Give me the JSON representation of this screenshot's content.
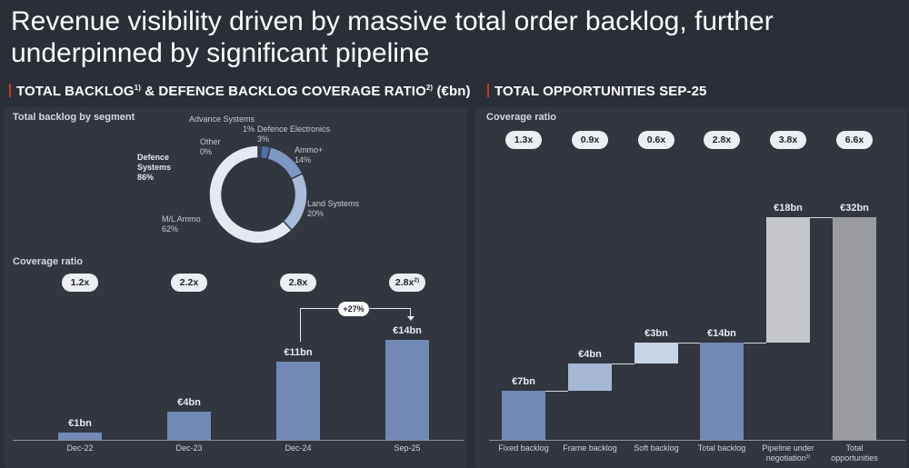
{
  "slide": {
    "title": "Revenue visibility driven by massive total order backlog, further underpinned by significant pipeline"
  },
  "left": {
    "heading_main": "TOTAL BACKLOG",
    "heading_sup1": "1)",
    "heading_mid": " & DEFENCE BACKLOG COVERAGE RATIO",
    "heading_sup2": "2)",
    "heading_end": " (€bn)",
    "donut_label": "Total backlog by segment",
    "coverage_label": "Coverage ratio",
    "growth_badge": "+27%",
    "center_label_line1": "Defence",
    "center_label_line2": "Systems",
    "center_label_pct": "86%"
  },
  "right": {
    "heading": "TOTAL OPPORTUNITIES SEP-25",
    "coverage_label": "Coverage ratio"
  },
  "chart_data": [
    {
      "type": "pie",
      "title": "Total backlog by segment",
      "slices": [
        {
          "name": "Advance Systems",
          "value": 1,
          "label": "1%",
          "color": "#2f5089"
        },
        {
          "name": "Defence Electronics",
          "value": 3,
          "label": "3%",
          "color": "#4e6fa6"
        },
        {
          "name": "Ammo+",
          "value": 14,
          "label": "14%",
          "color": "#7d97c3"
        },
        {
          "name": "Land Systems",
          "value": 20,
          "label": "20%",
          "color": "#a9bcd9"
        },
        {
          "name": "M/L Ammo",
          "value": 62,
          "label": "62%",
          "color": "#e6e9ef"
        },
        {
          "name": "Other",
          "value": 0,
          "label": "0%",
          "color": "#cfd4dc"
        }
      ]
    },
    {
      "type": "bar",
      "title": "Total backlog",
      "categories": [
        "Dec-22",
        "Dec-23",
        "Dec-24",
        "Sep-25"
      ],
      "values": [
        1,
        4,
        11,
        14
      ],
      "value_labels": [
        "€1bn",
        "€4bn",
        "€11bn",
        "€14bn"
      ],
      "coverage_ratios": [
        "1.2x",
        "2.2x",
        "2.8x",
        "2.8x"
      ],
      "coverage_sup": [
        "",
        "",
        "",
        "2)"
      ],
      "ylim": [
        0,
        14
      ],
      "color": "#7189b4"
    },
    {
      "type": "bar",
      "subtype": "waterfall",
      "title": "Total opportunities Sep-25",
      "categories": [
        "Fixed backlog",
        "Frame backlog",
        "Soft backlog",
        "Total backlog",
        "Pipeline under negotiation",
        "Total opportunities"
      ],
      "category_lines": [
        [
          "Fixed backlog"
        ],
        [
          "Frame backlog"
        ],
        [
          "Soft backlog"
        ],
        [
          "Total backlog"
        ],
        [
          "Pipeline under",
          "negotiation"
        ],
        [
          "Total",
          "opportunities"
        ]
      ],
      "category_sup": [
        "",
        "",
        "",
        "",
        "3)",
        ""
      ],
      "values": [
        7,
        4,
        3,
        14,
        18,
        32
      ],
      "bases": [
        0,
        7,
        11,
        0,
        14,
        0
      ],
      "value_labels": [
        "€7bn",
        "€4bn",
        "€3bn",
        "€14bn",
        "€18bn",
        "€32bn"
      ],
      "coverage_ratios": [
        "1.3x",
        "0.9x",
        "0.6x",
        "2.8x",
        "3.8x",
        "6.6x"
      ],
      "colors": [
        "#7189b4",
        "#a6b7d3",
        "#c8d4e6",
        "#7189b4",
        "#c4c6ca",
        "#9a9ca0"
      ],
      "ylim": [
        0,
        32
      ]
    }
  ]
}
